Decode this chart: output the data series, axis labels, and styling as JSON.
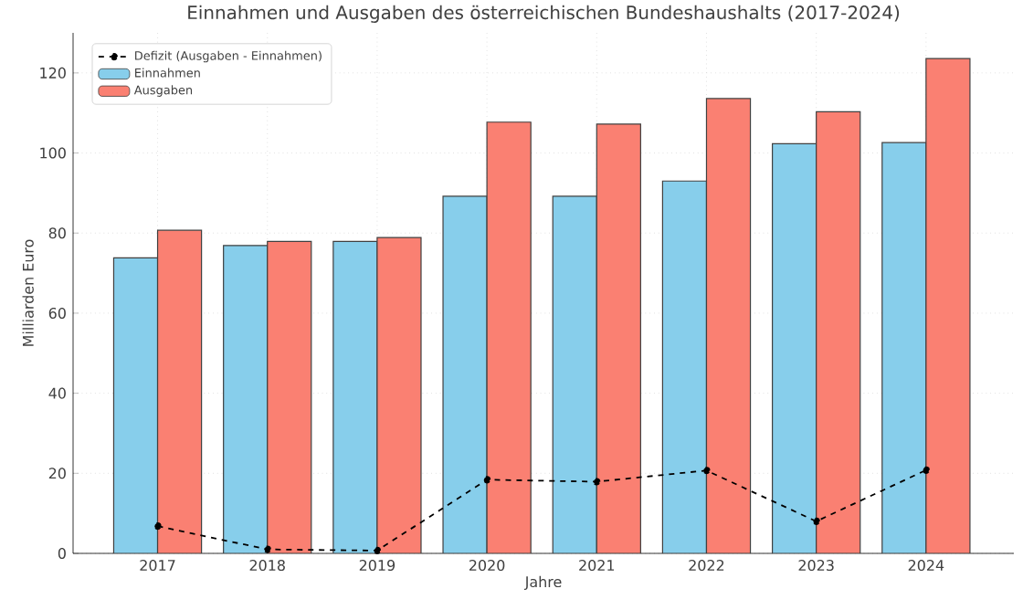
{
  "chart_data": {
    "type": "bar",
    "title": "Einnahmen und Ausgaben des österreichischen Bundeshaushalts (2017-2024)",
    "xlabel": "Jahre",
    "ylabel": "Milliarden Euro",
    "categories": [
      "2017",
      "2018",
      "2019",
      "2020",
      "2021",
      "2022",
      "2023",
      "2024"
    ],
    "series": [
      {
        "name": "Defizit (Ausgaben - Einnahmen)",
        "type": "line",
        "color": "#000000",
        "marker": "circle",
        "line_style": "dashed",
        "values": [
          6.8,
          1.0,
          0.7,
          18.4,
          17.9,
          20.7,
          8.0,
          20.8
        ]
      },
      {
        "name": "Einnahmen",
        "color": "#87ceeb",
        "values": [
          73.8,
          76.9,
          77.9,
          89.2,
          89.2,
          93.0,
          102.3,
          102.6
        ]
      },
      {
        "name": "Ausgaben",
        "color": "#fa8072",
        "values": [
          80.7,
          77.9,
          78.9,
          107.7,
          107.2,
          113.6,
          110.3,
          123.6
        ]
      }
    ],
    "ylim": [
      0,
      130
    ],
    "yticks": [
      0,
      20,
      40,
      60,
      80,
      100,
      120
    ],
    "grid": true,
    "legend": "top left"
  }
}
